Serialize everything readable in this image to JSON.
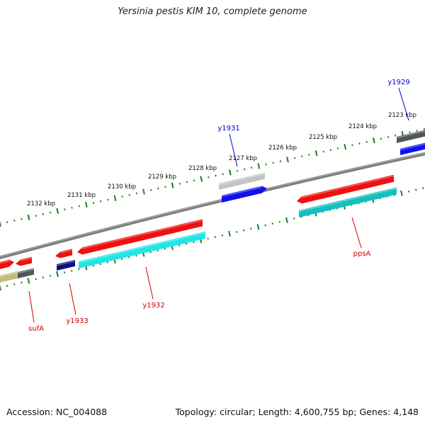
{
  "title": "Yersinia pestis KIM 10, complete genome",
  "footer": {
    "accession": "Accession: NC_004088",
    "topology": "Topology: circular; Length: 4,600,755 bp; Genes: 4,148"
  },
  "colors": {
    "backbone": "#7a7a7a",
    "ticks": "#1e7d1e",
    "red": "#ee1111",
    "cyan": "#22e6e6",
    "teal": "#15bfbf",
    "blue": "#1111ee",
    "navy": "#0a1480",
    "gray": "#c4c4c4",
    "darkgray": "#555555",
    "olive": "#c2bd7c",
    "label_red": "#cc0000",
    "label_blue": "#0000cc"
  },
  "scale_labels": [
    {
      "kbp": 2123,
      "text": "2123 kbp"
    },
    {
      "kbp": 2124,
      "text": "2124 kbp"
    },
    {
      "kbp": 2125,
      "text": "2125 kbp"
    },
    {
      "kbp": 2126,
      "text": "2126 kbp"
    },
    {
      "kbp": 2127,
      "text": "2127 kbp"
    },
    {
      "kbp": 2128,
      "text": "2128 kbp"
    },
    {
      "kbp": 2129,
      "text": "2129 kbp"
    },
    {
      "kbp": 2130,
      "text": "2130 kbp"
    },
    {
      "kbp": 2131,
      "text": "2131 kbp"
    },
    {
      "kbp": 2132,
      "text": "2132 kbp"
    }
  ],
  "gene_labels": [
    {
      "name": "y1929",
      "color": "blue"
    },
    {
      "name": "y1931",
      "color": "blue"
    },
    {
      "name": "ppsA",
      "color": "red"
    },
    {
      "name": "y1932",
      "color": "red"
    },
    {
      "name": "y1933",
      "color": "red"
    },
    {
      "name": "sufA",
      "color": "red"
    }
  ]
}
